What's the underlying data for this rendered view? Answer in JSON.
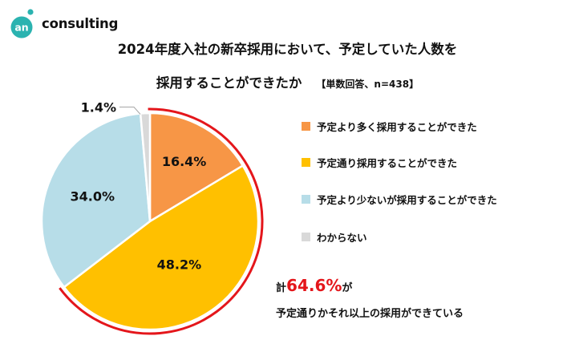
{
  "brand": {
    "mark": "an",
    "name": "consulting",
    "color": "#2bb3b0"
  },
  "title": {
    "line1": "2024年度入社の新卒採用において、予定していた人数を",
    "line2": "採用することができたか",
    "note": "【単数回答、n=438】"
  },
  "chart_data": {
    "type": "pie",
    "unit": "%",
    "slices": [
      {
        "label": "予定より多く採用することができた",
        "value": 16.4,
        "display": "16.4%",
        "color": "#f79646"
      },
      {
        "label": "予定通り採用することができた",
        "value": 48.2,
        "display": "48.2%",
        "color": "#ffc000"
      },
      {
        "label": "予定より少ないが採用することができた",
        "value": 34.0,
        "display": "34.0%",
        "color": "#b7dde8"
      },
      {
        "label": "わからない",
        "value": 1.4,
        "display": "1.4%",
        "color": "#d9d9d9"
      }
    ],
    "highlight": {
      "slices": [
        0,
        1
      ],
      "color": "#e4161b"
    },
    "legend_position": "right"
  },
  "summary": {
    "prefix": "計",
    "value": "64.6%",
    "suffix": "が",
    "line2": "予定通りかそれ以上の採用ができている",
    "color": "#e4161b"
  }
}
